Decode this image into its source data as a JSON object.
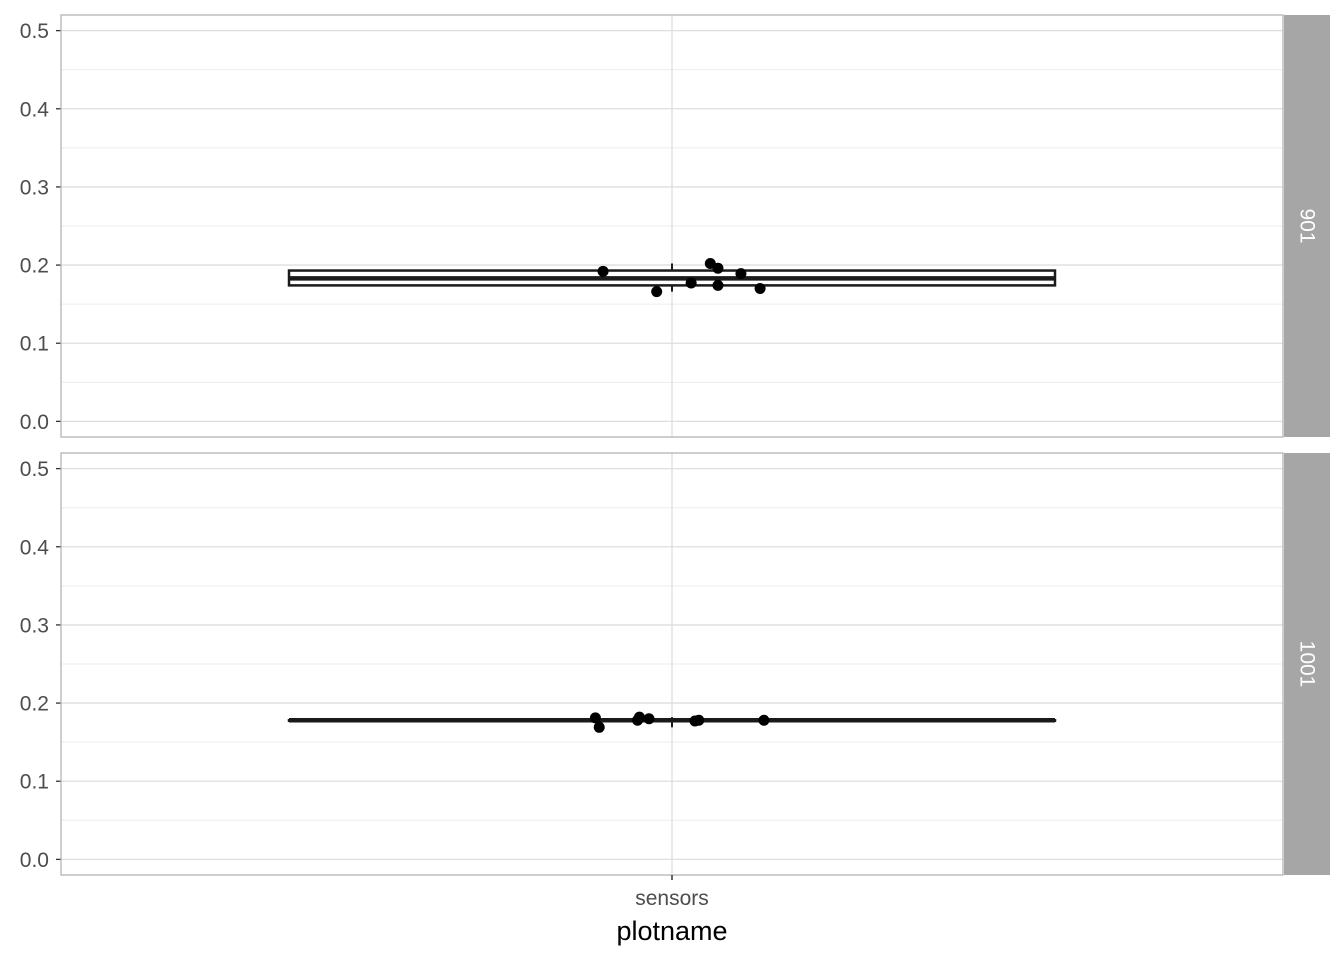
{
  "chart_data": {
    "type": "box",
    "xlabel": "plotname",
    "ylabel": "",
    "categories": [
      "sensors"
    ],
    "ylim": [
      -0.02,
      0.52
    ],
    "yticks": [
      "0.0",
      "0.1",
      "0.2",
      "0.3",
      "0.4",
      "0.5"
    ],
    "ytick_values": [
      0.0,
      0.1,
      0.2,
      0.3,
      0.4,
      0.5
    ],
    "facet_orientation": "rows",
    "grid": true,
    "colors": {
      "strip_bg": "#a6a6a6",
      "grid": "#dedede",
      "panel_border": "#b3b3b3",
      "mark": "#000000"
    },
    "panels": [
      {
        "strip": "901",
        "category": "sensors",
        "box": {
          "lower_whisker": 0.166,
          "q1": 0.174,
          "median": 0.183,
          "q3": 0.193,
          "upper_whisker": 0.202
        },
        "points": [
          {
            "jitter": -0.18,
            "y": 0.192
          },
          {
            "jitter": -0.04,
            "y": 0.166
          },
          {
            "jitter": 0.05,
            "y": 0.177
          },
          {
            "jitter": 0.1,
            "y": 0.202
          },
          {
            "jitter": 0.12,
            "y": 0.196
          },
          {
            "jitter": 0.12,
            "y": 0.174
          },
          {
            "jitter": 0.18,
            "y": 0.189
          },
          {
            "jitter": 0.23,
            "y": 0.17
          }
        ]
      },
      {
        "strip": "1001",
        "category": "sensors",
        "box": {
          "lower_whisker": 0.169,
          "q1": 0.178,
          "median": 0.178,
          "q3": 0.178,
          "upper_whisker": 0.182
        },
        "points": [
          {
            "jitter": -0.2,
            "y": 0.181
          },
          {
            "jitter": -0.19,
            "y": 0.169
          },
          {
            "jitter": -0.09,
            "y": 0.178
          },
          {
            "jitter": -0.085,
            "y": 0.182
          },
          {
            "jitter": -0.06,
            "y": 0.18
          },
          {
            "jitter": 0.06,
            "y": 0.177
          },
          {
            "jitter": 0.07,
            "y": 0.178
          },
          {
            "jitter": 0.24,
            "y": 0.178
          }
        ]
      }
    ]
  }
}
